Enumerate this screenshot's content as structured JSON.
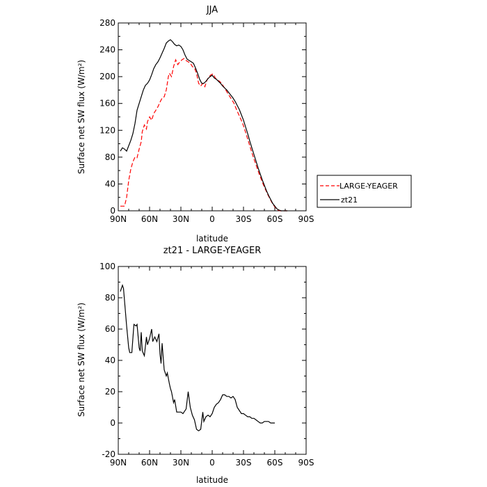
{
  "chart_data": [
    {
      "type": "line",
      "title": "JJA",
      "xlabel": "latitude",
      "ylabel": "Surface net SW flux (W/m²)",
      "xlim": [
        90,
        -90
      ],
      "ylim": [
        0,
        280
      ],
      "xticks": [
        90,
        60,
        30,
        0,
        -30,
        -60,
        -90
      ],
      "xtick_labels": [
        "90N",
        "60N",
        "30N",
        "0",
        "30S",
        "60S",
        "90S"
      ],
      "yticks": [
        0,
        40,
        80,
        120,
        160,
        200,
        240,
        280
      ],
      "ytick_labels": [
        "0",
        "40",
        "80",
        "120",
        "160",
        "200",
        "240",
        "280"
      ],
      "legend_position": "outside-right",
      "series": [
        {
          "name": "LARGE-YEAGER",
          "color": "#ff0000",
          "dash": "dashed",
          "points": [
            [
              88,
              7
            ],
            [
              84,
              7
            ],
            [
              82,
              20
            ],
            [
              80,
              45
            ],
            [
              78,
              62
            ],
            [
              76,
              73
            ],
            [
              74,
              80
            ],
            [
              72,
              79
            ],
            [
              70,
              92
            ],
            [
              68,
              103
            ],
            [
              67,
              118
            ],
            [
              65,
              128
            ],
            [
              63,
              122
            ],
            [
              62,
              133
            ],
            [
              60,
              140
            ],
            [
              58,
              135
            ],
            [
              56,
              145
            ],
            [
              54,
              150
            ],
            [
              52,
              155
            ],
            [
              50,
              162
            ],
            [
              48,
              168
            ],
            [
              46,
              170
            ],
            [
              44,
              180
            ],
            [
              42,
              200
            ],
            [
              41,
              205
            ],
            [
              39,
              200
            ],
            [
              37,
              215
            ],
            [
              35,
              225
            ],
            [
              33,
              218
            ],
            [
              31,
              222
            ],
            [
              29,
              225
            ],
            [
              27,
              227
            ],
            [
              25,
              224
            ],
            [
              23,
              222
            ],
            [
              21,
              220
            ],
            [
              19,
              215
            ],
            [
              17,
              213
            ],
            [
              15,
              205
            ],
            [
              13,
              190
            ],
            [
              11,
              186
            ],
            [
              9,
              190
            ],
            [
              7,
              185
            ],
            [
              5,
              195
            ],
            [
              3,
              200
            ],
            [
              1,
              203
            ],
            [
              -1,
              204
            ],
            [
              -3,
              198
            ],
            [
              -5,
              195
            ],
            [
              -7,
              193
            ],
            [
              -9,
              190
            ],
            [
              -11,
              185
            ],
            [
              -13,
              180
            ],
            [
              -15,
              175
            ],
            [
              -17,
              170
            ],
            [
              -19,
              165
            ],
            [
              -21,
              160
            ],
            [
              -23,
              152
            ],
            [
              -25,
              145
            ],
            [
              -27,
              138
            ],
            [
              -29,
              131
            ],
            [
              -31,
              122
            ],
            [
              -33,
              112
            ],
            [
              -35,
              102
            ],
            [
              -37,
              92
            ],
            [
              -39,
              82
            ],
            [
              -41,
              73
            ],
            [
              -43,
              64
            ],
            [
              -45,
              55
            ],
            [
              -47,
              47
            ],
            [
              -49,
              39
            ],
            [
              -51,
              32
            ],
            [
              -53,
              25
            ],
            [
              -55,
              19
            ],
            [
              -57,
              13
            ],
            [
              -59,
              8
            ],
            [
              -61,
              4
            ],
            [
              -63,
              1
            ],
            [
              -65,
              0
            ],
            [
              -68,
              0
            ],
            [
              -72,
              0
            ]
          ]
        },
        {
          "name": "zt21",
          "color": "#000000",
          "dash": "solid",
          "points": [
            [
              88,
              89
            ],
            [
              86,
              94
            ],
            [
              84,
              92
            ],
            [
              82,
              89
            ],
            [
              80,
              97
            ],
            [
              78,
              105
            ],
            [
              76,
              115
            ],
            [
              74,
              130
            ],
            [
              72,
              150
            ],
            [
              70,
              160
            ],
            [
              68,
              170
            ],
            [
              66,
              180
            ],
            [
              64,
              187
            ],
            [
              62,
              190
            ],
            [
              60,
              195
            ],
            [
              58,
              203
            ],
            [
              56,
              212
            ],
            [
              54,
              218
            ],
            [
              52,
              222
            ],
            [
              50,
              228
            ],
            [
              48,
              235
            ],
            [
              46,
              242
            ],
            [
              44,
              250
            ],
            [
              42,
              253
            ],
            [
              40,
              255
            ],
            [
              38,
              252
            ],
            [
              36,
              248
            ],
            [
              34,
              246
            ],
            [
              32,
              247
            ],
            [
              30,
              245
            ],
            [
              28,
              240
            ],
            [
              26,
              232
            ],
            [
              24,
              226
            ],
            [
              22,
              224
            ],
            [
              20,
              222
            ],
            [
              18,
              220
            ],
            [
              16,
              213
            ],
            [
              14,
              205
            ],
            [
              12,
              196
            ],
            [
              10,
              190
            ],
            [
              8,
              190
            ],
            [
              6,
              193
            ],
            [
              4,
              197
            ],
            [
              2,
              200
            ],
            [
              0,
              202
            ],
            [
              -2,
              198
            ],
            [
              -4,
              196
            ],
            [
              -6,
              193
            ],
            [
              -8,
              190
            ],
            [
              -10,
              186
            ],
            [
              -12,
              183
            ],
            [
              -14,
              180
            ],
            [
              -16,
              176
            ],
            [
              -18,
              172
            ],
            [
              -20,
              168
            ],
            [
              -22,
              163
            ],
            [
              -24,
              157
            ],
            [
              -26,
              151
            ],
            [
              -28,
              143
            ],
            [
              -30,
              135
            ],
            [
              -32,
              125
            ],
            [
              -34,
              115
            ],
            [
              -36,
              104
            ],
            [
              -38,
              94
            ],
            [
              -40,
              84
            ],
            [
              -42,
              74
            ],
            [
              -44,
              64
            ],
            [
              -46,
              55
            ],
            [
              -48,
              46
            ],
            [
              -50,
              38
            ],
            [
              -52,
              30
            ],
            [
              -54,
              23
            ],
            [
              -56,
              17
            ],
            [
              -58,
              11
            ],
            [
              -60,
              7
            ],
            [
              -62,
              3
            ],
            [
              -64,
              1
            ],
            [
              -66,
              0
            ],
            [
              -72,
              0
            ]
          ]
        }
      ]
    },
    {
      "type": "line",
      "title": "zt21 - LARGE-YEAGER",
      "xlabel": "latitude",
      "ylabel": "Surface net SW flux (W/m²)",
      "xlim": [
        90,
        -90
      ],
      "ylim": [
        -20,
        100
      ],
      "xticks": [
        90,
        60,
        30,
        0,
        -30,
        -60,
        -90
      ],
      "xtick_labels": [
        "90N",
        "60N",
        "30N",
        "0",
        "30S",
        "60S",
        "90S"
      ],
      "yticks": [
        -20,
        0,
        20,
        40,
        60,
        80,
        100
      ],
      "ytick_labels": [
        "-20",
        "0",
        "20",
        "40",
        "60",
        "80",
        "100"
      ],
      "series": [
        {
          "color": "#000000",
          "dash": "solid",
          "points": [
            [
              88,
              84
            ],
            [
              86,
              88
            ],
            [
              85,
              86
            ],
            [
              83,
              70
            ],
            [
              82,
              62
            ],
            [
              80,
              48
            ],
            [
              79,
              45
            ],
            [
              77,
              45
            ],
            [
              75,
              63
            ],
            [
              73,
              62
            ],
            [
              72,
              63
            ],
            [
              70,
              48
            ],
            [
              69,
              46
            ],
            [
              68,
              58
            ],
            [
              67,
              46
            ],
            [
              65,
              43
            ],
            [
              63,
              55
            ],
            [
              62,
              50
            ],
            [
              60,
              54
            ],
            [
              58,
              60
            ],
            [
              57,
              52
            ],
            [
              55,
              55
            ],
            [
              53,
              52
            ],
            [
              51,
              57
            ],
            [
              50,
              44
            ],
            [
              49,
              38
            ],
            [
              48,
              51
            ],
            [
              46,
              34
            ],
            [
              44,
              30
            ],
            [
              43,
              32
            ],
            [
              41,
              25
            ],
            [
              40,
              22
            ],
            [
              39,
              20
            ],
            [
              37,
              13
            ],
            [
              36,
              15
            ],
            [
              34,
              7
            ],
            [
              32,
              7
            ],
            [
              30,
              7
            ],
            [
              28,
              6
            ],
            [
              27,
              7
            ],
            [
              25,
              9
            ],
            [
              23,
              20
            ],
            [
              21,
              10
            ],
            [
              19,
              5
            ],
            [
              17,
              2
            ],
            [
              15,
              -4
            ],
            [
              13,
              -5
            ],
            [
              11,
              -4
            ],
            [
              9,
              7
            ],
            [
              8,
              1
            ],
            [
              6,
              4
            ],
            [
              4,
              5
            ],
            [
              2,
              4
            ],
            [
              0,
              6
            ],
            [
              -2,
              10
            ],
            [
              -4,
              12
            ],
            [
              -6,
              13
            ],
            [
              -8,
              15
            ],
            [
              -10,
              18
            ],
            [
              -12,
              18
            ],
            [
              -14,
              17
            ],
            [
              -16,
              17
            ],
            [
              -18,
              16
            ],
            [
              -20,
              17
            ],
            [
              -22,
              15
            ],
            [
              -24,
              10
            ],
            [
              -26,
              8
            ],
            [
              -28,
              6
            ],
            [
              -30,
              6
            ],
            [
              -32,
              5
            ],
            [
              -34,
              4
            ],
            [
              -36,
              4
            ],
            [
              -38,
              3
            ],
            [
              -40,
              3
            ],
            [
              -42,
              2
            ],
            [
              -44,
              1
            ],
            [
              -46,
              0
            ],
            [
              -48,
              0
            ],
            [
              -50,
              1
            ],
            [
              -52,
              1
            ],
            [
              -54,
              1
            ],
            [
              -56,
              0
            ],
            [
              -58,
              0
            ],
            [
              -60,
              0
            ]
          ]
        }
      ]
    }
  ]
}
